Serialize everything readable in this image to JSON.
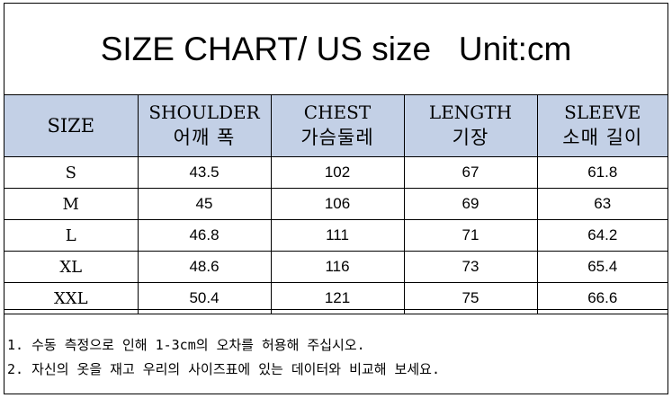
{
  "title": "SIZE CHART/ US size   Unit:cm",
  "table": {
    "header": {
      "size": "SIZE",
      "columns": [
        {
          "en": "SHOULDER",
          "ko": "어깨 폭"
        },
        {
          "en": "CHEST",
          "ko": "가슴둘레"
        },
        {
          "en": "LENGTH",
          "ko": "기장"
        },
        {
          "en": "SLEEVE",
          "ko": "소매 길이"
        }
      ]
    },
    "rows": [
      {
        "size": "S",
        "shoulder": "43.5",
        "chest": "102",
        "length": "67",
        "sleeve": "61.8"
      },
      {
        "size": "M",
        "shoulder": "45",
        "chest": "106",
        "length": "69",
        "sleeve": "63"
      },
      {
        "size": "L",
        "shoulder": "46.8",
        "chest": "111",
        "length": "71",
        "sleeve": "64.2"
      },
      {
        "size": "XL",
        "shoulder": "48.6",
        "chest": "116",
        "length": "73",
        "sleeve": "65.4"
      },
      {
        "size": "XXL",
        "shoulder": "50.4",
        "chest": "121",
        "length": "75",
        "sleeve": "66.6"
      }
    ]
  },
  "notes": [
    "1. 수동 측정으로 인해 1-3cm의 오차를 허용해 주십시오.",
    "2. 자신의 옷을 재고 우리의 사이즈표에 있는 데이터와 비교해 보세요."
  ],
  "colors": {
    "header_bg": "#c3d0e6",
    "border": "#000000"
  }
}
